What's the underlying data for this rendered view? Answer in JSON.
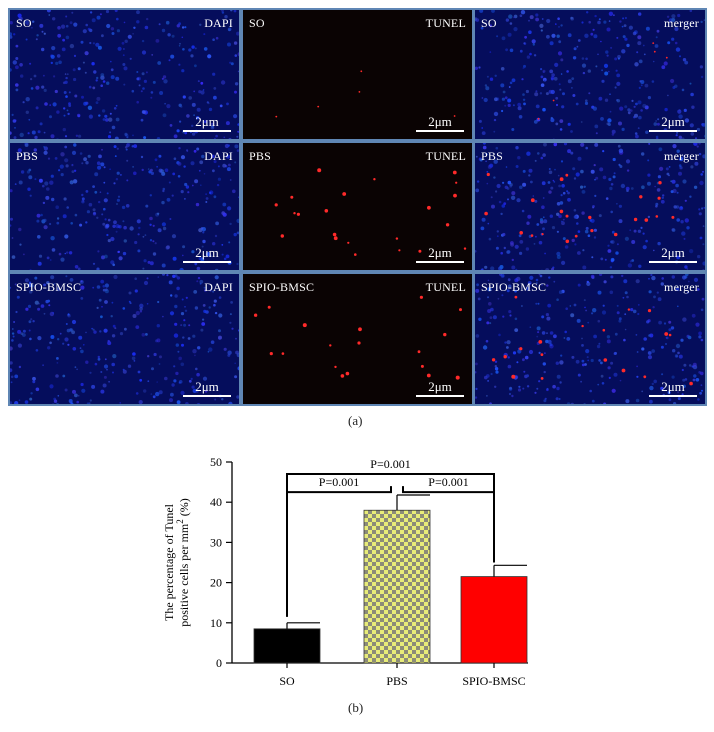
{
  "figure": {
    "panels": [
      {
        "group": "SO",
        "channel": "DAPI",
        "kind": "blue"
      },
      {
        "group": "SO",
        "channel": "TUNEL",
        "kind": "red"
      },
      {
        "group": "SO",
        "channel": "merger",
        "kind": "merge"
      },
      {
        "group": "PBS",
        "channel": "DAPI",
        "kind": "blue"
      },
      {
        "group": "PBS",
        "channel": "TUNEL",
        "kind": "red"
      },
      {
        "group": "PBS",
        "channel": "merger",
        "kind": "merge"
      },
      {
        "group": "SPIO-BMSC",
        "channel": "DAPI",
        "kind": "blue"
      },
      {
        "group": "SPIO-BMSC",
        "channel": "TUNEL",
        "kind": "red"
      },
      {
        "group": "SPIO-BMSC",
        "channel": "merger",
        "kind": "merge"
      }
    ],
    "scale_bar_label": "2μm",
    "caption_a": "(a)",
    "caption_b": "(b)",
    "colors": {
      "panel_border": "#5f86b4",
      "dapi_blue": "#1f3fe0",
      "tunel_red": "#ff2020"
    }
  },
  "chart_data": {
    "type": "bar",
    "categories": [
      "SO",
      "PBS",
      "SPIO-BMSC"
    ],
    "values": [
      8.5,
      38,
      21.5
    ],
    "errors": [
      1.5,
      3.8,
      2.8
    ],
    "bar_fills": [
      "#000000",
      "checker-yellow-grey",
      "#ff0000"
    ],
    "ylabel_line1": "The percentage of Tunel",
    "ylabel_line2": "positive cells per mm",
    "ylabel_sup": "2",
    "ylabel_tail": " (%)",
    "ylim": [
      0,
      50
    ],
    "yticks": [
      0,
      10,
      20,
      30,
      40,
      50
    ],
    "comparisons": [
      {
        "from": 0,
        "to": 1,
        "label": "P=0.001"
      },
      {
        "from": 1,
        "to": 2,
        "label": "P=0.001"
      },
      {
        "from": 0,
        "to": 2,
        "label": "P=0.001"
      }
    ]
  }
}
